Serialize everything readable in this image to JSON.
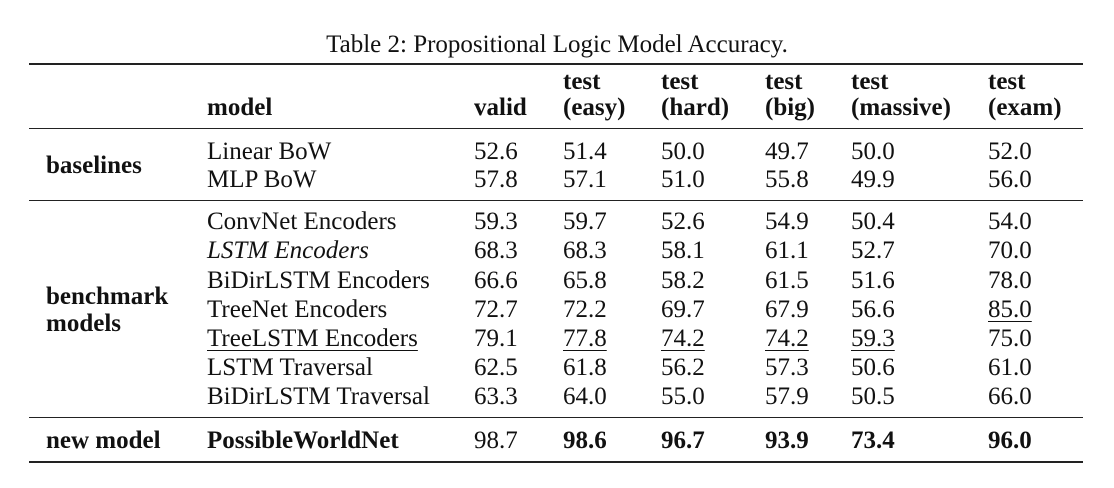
{
  "caption": "Table 2: Propositional Logic Model Accuracy.",
  "header": {
    "model": "model",
    "valid": "valid",
    "test_easy": [
      "test",
      "(easy)"
    ],
    "test_hard": [
      "test",
      "(hard)"
    ],
    "test_big": [
      "test",
      "(big)"
    ],
    "test_massive": [
      "test",
      "(massive)"
    ],
    "test_exam": [
      "test",
      "(exam)"
    ]
  },
  "groups": {
    "baselines": "baselines",
    "benchmark": [
      "benchmark",
      "models"
    ],
    "new_model": "new model"
  },
  "rows": [
    {
      "model": "Linear BoW",
      "values": [
        "52.6",
        "51.4",
        "50.0",
        "49.7",
        "50.0",
        "52.0"
      ]
    },
    {
      "model": "MLP BoW",
      "values": [
        "57.8",
        "57.1",
        "51.0",
        "55.8",
        "49.9",
        "56.0"
      ]
    },
    {
      "model": "ConvNet Encoders",
      "values": [
        "59.3",
        "59.7",
        "52.6",
        "54.9",
        "50.4",
        "54.0"
      ]
    },
    {
      "model": "LSTM Encoders",
      "values": [
        "68.3",
        "68.3",
        "58.1",
        "61.1",
        "52.7",
        "70.0"
      ]
    },
    {
      "model": "BiDirLSTM Encoders",
      "values": [
        "66.6",
        "65.8",
        "58.2",
        "61.5",
        "51.6",
        "78.0"
      ]
    },
    {
      "model": "TreeNet Encoders",
      "values": [
        "72.7",
        "72.2",
        "69.7",
        "67.9",
        "56.6",
        "85.0"
      ]
    },
    {
      "model": "TreeLSTM Encoders",
      "values": [
        "79.1",
        "77.8",
        "74.2",
        "74.2",
        "59.3",
        "75.0"
      ]
    },
    {
      "model": "LSTM Traversal",
      "values": [
        "62.5",
        "61.8",
        "56.2",
        "57.3",
        "50.6",
        "61.0"
      ]
    },
    {
      "model": "BiDirLSTM Traversal",
      "values": [
        "63.3",
        "64.0",
        "55.0",
        "57.9",
        "50.5",
        "66.0"
      ]
    },
    {
      "model": "PossibleWorldNet",
      "values": [
        "98.7",
        "98.6",
        "96.7",
        "93.9",
        "73.4",
        "96.0"
      ]
    }
  ]
}
